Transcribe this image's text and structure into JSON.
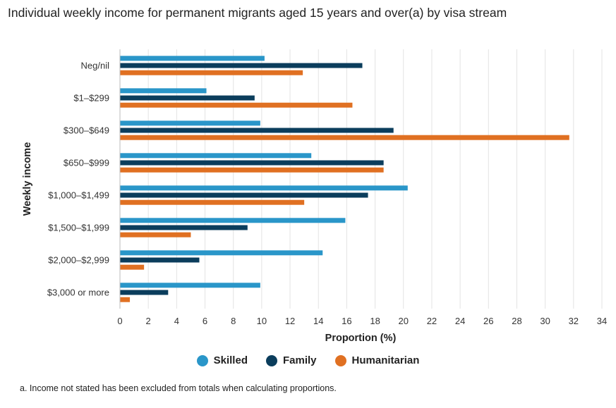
{
  "title": "Individual weekly income for permanent migrants aged 15 years and over(a) by visa stream",
  "footnote": "a. Income not stated has been excluded from totals when calculating proportions.",
  "chart_data": {
    "type": "bar",
    "orientation": "horizontal",
    "title": "Individual weekly income for permanent migrants aged 15 years and over(a) by visa stream",
    "xlabel": "Proportion (%)",
    "ylabel": "Weekly income",
    "xlim": [
      0,
      34
    ],
    "xticks": [
      0,
      2,
      4,
      6,
      8,
      10,
      12,
      14,
      16,
      18,
      20,
      22,
      24,
      26,
      28,
      30,
      32,
      34
    ],
    "grid": "vertical",
    "legend_position": "bottom",
    "categories": [
      "Neg/nil",
      "$1–$299",
      "$300–$649",
      "$650–$999",
      "$1,000–$1,499",
      "$1,500–$1,999",
      "$2,000–$2,999",
      "$3,000 or more"
    ],
    "series": [
      {
        "name": "Skilled",
        "color": "#2a96c9",
        "values": [
          10.2,
          6.1,
          9.9,
          13.5,
          20.3,
          15.9,
          14.3,
          9.9
        ]
      },
      {
        "name": "Family",
        "color": "#0b3d5c",
        "values": [
          17.1,
          9.5,
          19.3,
          18.6,
          17.5,
          9.0,
          5.6,
          3.4
        ]
      },
      {
        "name": "Humanitarian",
        "color": "#e07022",
        "values": [
          12.9,
          16.4,
          31.7,
          18.6,
          13.0,
          5.0,
          1.7,
          0.7
        ]
      }
    ]
  }
}
